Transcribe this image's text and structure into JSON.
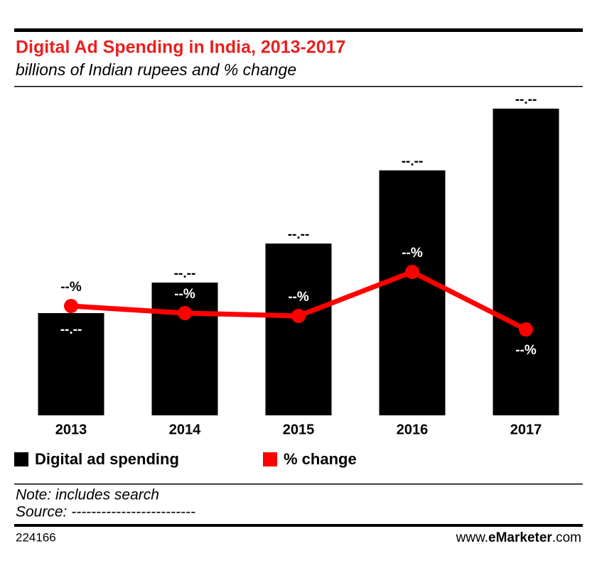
{
  "chart_data": {
    "type": "bar",
    "title": "Digital Ad Spending in India, 2013-2017",
    "subtitle": "billions of Indian rupees and % change",
    "categories": [
      "2013",
      "2014",
      "2015",
      "2016",
      "2017"
    ],
    "ylim": [
      0,
      45.5
    ],
    "y2lim": [
      0,
      45.5
    ],
    "series": [
      {
        "name": "Digital ad spending",
        "color": "#000000",
        "values": [
          14.4,
          18.7,
          24.2,
          34.5,
          43.2
        ],
        "value_labels": [
          "--.--",
          "--.--",
          "--.--",
          "--.--",
          "--.--"
        ]
      },
      {
        "name": "% change",
        "type": "line",
        "axis": "y2",
        "color": "#ff0000",
        "values": [
          15.4,
          14.4,
          14.0,
          20.2,
          12.1
        ],
        "value_labels": [
          "--%",
          "--%",
          "--%",
          "--%",
          "--%"
        ]
      }
    ]
  },
  "note": "Note: includes search",
  "source": "Source: -------------------------",
  "footer": {
    "id": "224166",
    "prefix": "www.",
    "brand": "eMarketer",
    "suffix": ".com"
  }
}
